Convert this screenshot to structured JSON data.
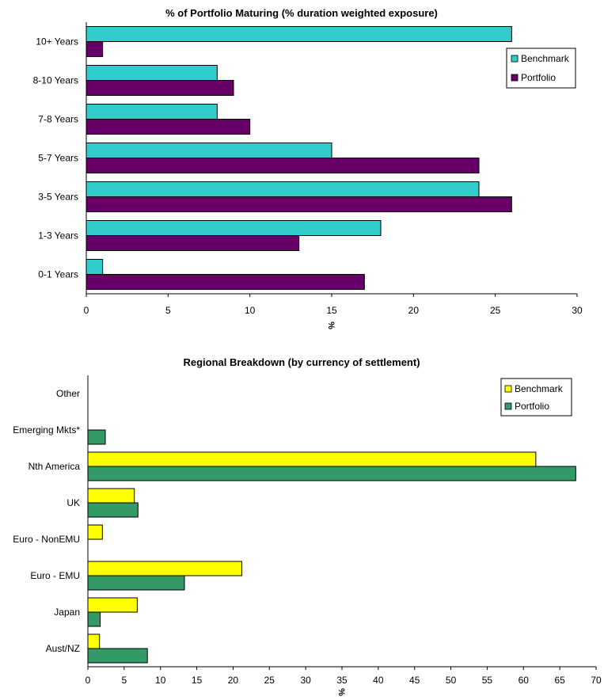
{
  "chart_data": [
    {
      "type": "bar",
      "orientation": "horizontal",
      "title": "% of Portfolio Maturing (% duration weighted exposure)",
      "xlabel": "%",
      "ylabel": "",
      "xlim": [
        0,
        30
      ],
      "xticks": [
        0,
        5,
        10,
        15,
        20,
        25,
        30
      ],
      "categories": [
        "0-1 Years",
        "1-3 Years",
        "3-5 Years",
        "5-7 Years",
        "7-8 Years",
        "8-10 Years",
        "10+ Years"
      ],
      "series": [
        {
          "name": "Benchmark",
          "color": "#33cccc",
          "values": [
            1,
            18,
            24,
            15,
            8,
            8,
            26
          ]
        },
        {
          "name": "Portfolio",
          "color": "#660066",
          "values": [
            17,
            13,
            26,
            24,
            10,
            9,
            1
          ]
        }
      ],
      "legend": {
        "position": "right"
      },
      "grid": false
    },
    {
      "type": "bar",
      "orientation": "horizontal",
      "title": "Regional Breakdown (by currency of settlement)",
      "xlabel": "%",
      "ylabel": "",
      "xlim": [
        0,
        70
      ],
      "xticks": [
        0,
        5,
        10,
        15,
        20,
        25,
        30,
        35,
        40,
        45,
        50,
        55,
        60,
        65,
        70
      ],
      "categories": [
        "Aust/NZ",
        "Japan",
        "Euro - EMU",
        "Euro - NonEMU",
        "UK",
        "Nth America",
        "Emerging Mkts*",
        "Other"
      ],
      "series": [
        {
          "name": "Benchmark",
          "color": "#ffff00",
          "values": [
            1.6,
            6.8,
            21.2,
            2.0,
            6.4,
            61.7,
            0,
            0
          ]
        },
        {
          "name": "Portfolio",
          "color": "#339966",
          "values": [
            8.2,
            1.7,
            13.3,
            0,
            6.9,
            67.2,
            2.4,
            0
          ]
        }
      ],
      "legend": {
        "position": "top-right"
      },
      "grid": false
    }
  ]
}
